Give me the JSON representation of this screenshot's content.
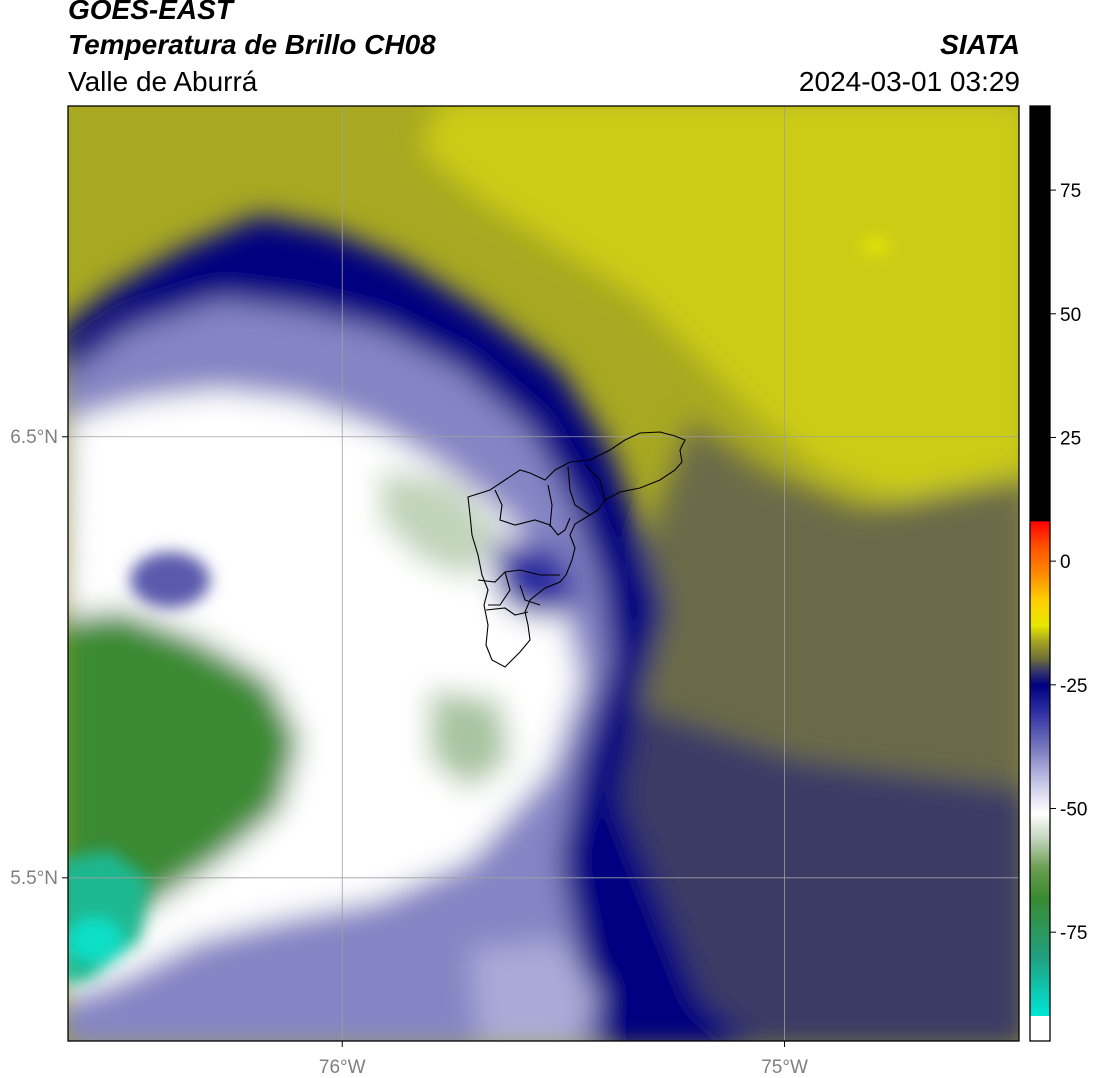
{
  "header": {
    "title": "GOES-EAST",
    "subtitle": "Temperatura de Brillo CH08",
    "region": "Valle de Aburrá",
    "agency": "SIATA",
    "datetime": "2024-03-01 03:29"
  },
  "map": {
    "lat_ticks": [
      {
        "value": 6.5,
        "label": "6.5°N"
      },
      {
        "value": 5.5,
        "label": "5.5°N"
      }
    ],
    "lon_ticks": [
      {
        "value": -76.0,
        "label": "76°W"
      },
      {
        "value": -75.0,
        "label": "75°W"
      }
    ],
    "lat_range": [
      5.13,
      7.25
    ],
    "lon_range": [
      -76.62,
      -74.47
    ],
    "gridline_color": "#a0a0a0",
    "tick_label_color": "#808080"
  },
  "colorbar": {
    "ticks": [
      {
        "value": 75,
        "label": "75"
      },
      {
        "value": 50,
        "label": "50"
      },
      {
        "value": 25,
        "label": "25"
      },
      {
        "value": 0,
        "label": "0"
      },
      {
        "value": -25,
        "label": "-25"
      },
      {
        "value": -50,
        "label": "-50"
      },
      {
        "value": -75,
        "label": "-75"
      }
    ],
    "range": [
      -97,
      92
    ],
    "stops": [
      {
        "value": -97,
        "color": "#ffffff"
      },
      {
        "value": -92,
        "color": "#ffffff"
      },
      {
        "value": -91.9,
        "color": "#00e5d5"
      },
      {
        "value": -80,
        "color": "#20a080"
      },
      {
        "value": -68,
        "color": "#3a8a30"
      },
      {
        "value": -62,
        "color": "#6a9e50"
      },
      {
        "value": -56,
        "color": "#c5d6bf"
      },
      {
        "value": -51,
        "color": "#ffffff"
      },
      {
        "value": -45,
        "color": "#c8c8e8"
      },
      {
        "value": -38,
        "color": "#7a7ac0"
      },
      {
        "value": -30,
        "color": "#2a2aa0"
      },
      {
        "value": -25,
        "color": "#000080"
      },
      {
        "value": -22,
        "color": "#3a3a68"
      },
      {
        "value": -20,
        "color": "#6a6a3a"
      },
      {
        "value": -16,
        "color": "#a8a820"
      },
      {
        "value": -13,
        "color": "#e8e800"
      },
      {
        "value": -8,
        "color": "#ffd000"
      },
      {
        "value": -3,
        "color": "#ff9000"
      },
      {
        "value": 3,
        "color": "#ff5000"
      },
      {
        "value": 8,
        "color": "#ff0000"
      },
      {
        "value": 8.1,
        "color": "#000000"
      },
      {
        "value": 92,
        "color": "#000000"
      }
    ]
  },
  "colors": {
    "warm_dry": "#c8c814",
    "mid_level": "#6a6a48",
    "cloud_edge": "#000080",
    "cloud_mid": "#8080c0",
    "cloud_cold": "#ffffff",
    "coldest_green": "#3a8a30",
    "coldest_cyan": "#1fb890",
    "boundary": "#000000"
  }
}
